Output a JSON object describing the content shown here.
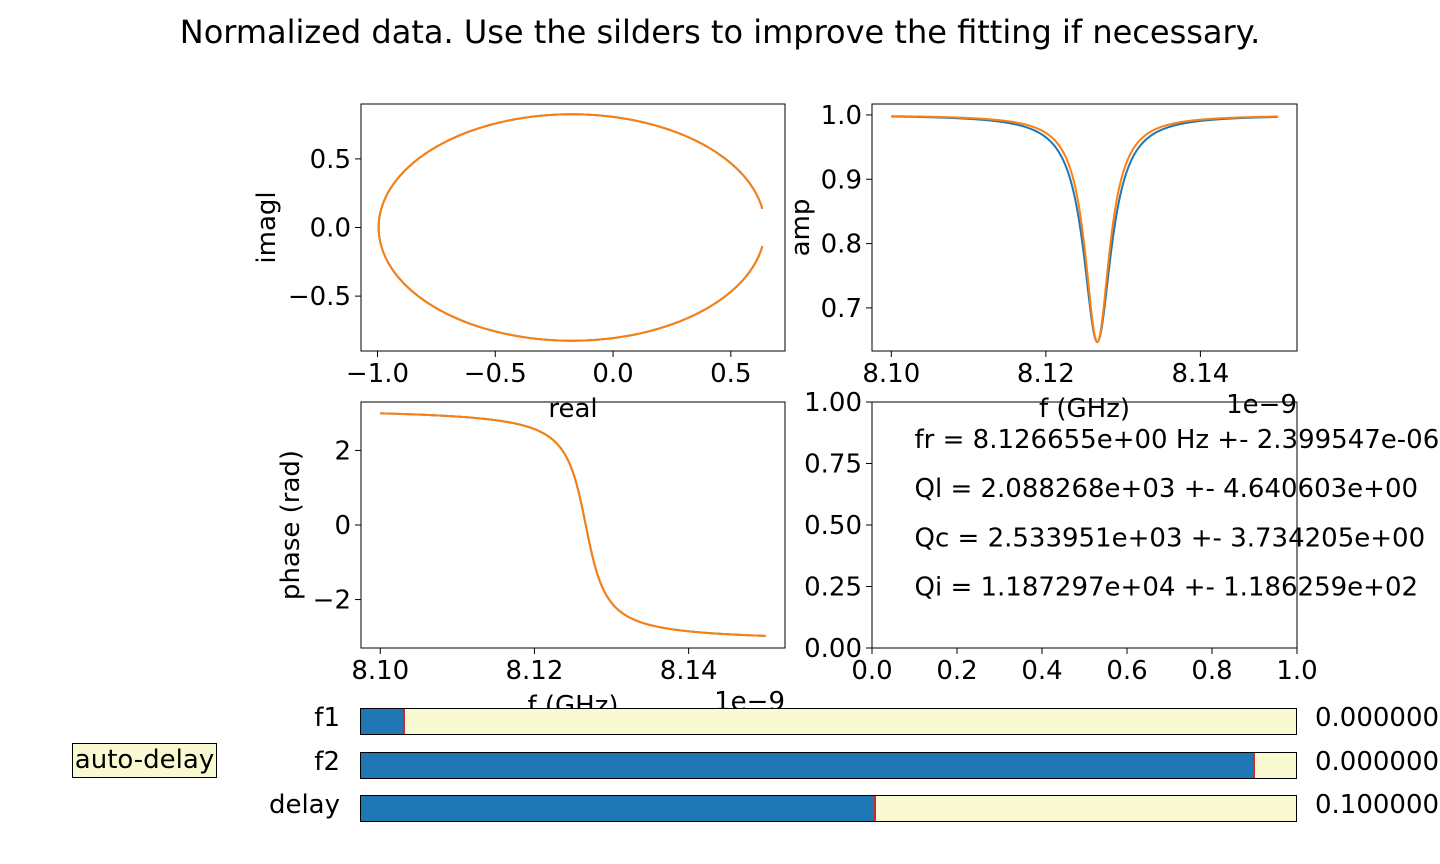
{
  "title": "Normalized data. Use the silders to improve the fitting if necessary.",
  "colors": {
    "data": "#1f77b4",
    "fit": "#ff7f0e",
    "handle": "#d62728",
    "widget_bg": "#fafad2"
  },
  "chart_data": [
    {
      "id": "iq",
      "type": "line",
      "xlabel": "real",
      "ylabel": "imagl",
      "xlim": [
        -1.07,
        0.73
      ],
      "ylim": [
        -0.9,
        0.9
      ],
      "xticks": [
        -1.0,
        -0.5,
        0.0,
        0.5
      ],
      "xtick_labels": [
        "−1.0",
        "−0.5",
        "0.0",
        "0.5"
      ],
      "yticks": [
        -0.5,
        0.0,
        0.5
      ],
      "ytick_labels": [
        "−0.5",
        "0.0",
        "0.5"
      ],
      "circle": {
        "center": [
          -0.175,
          0.0
        ],
        "radius_x": 0.82,
        "radius_y": 0.825,
        "gap_half_angle_deg": 9.5
      },
      "series": [
        {
          "role": "data"
        },
        {
          "role": "fit"
        }
      ]
    },
    {
      "id": "amp",
      "type": "line",
      "xlabel": "f (GHz)",
      "ylabel": "amp",
      "offset_text": "1e−9",
      "xlim": [
        8.0975,
        8.1525
      ],
      "ylim": [
        0.633,
        1.017
      ],
      "xticks": [
        8.1,
        8.12,
        8.14
      ],
      "xtick_labels": [
        "8.10",
        "8.12",
        "8.14"
      ],
      "yticks": [
        0.7,
        0.8,
        0.9,
        1.0
      ],
      "ytick_labels": [
        "0.7",
        "0.8",
        "0.9",
        "1.0"
      ],
      "x_range": [
        8.1,
        8.15
      ],
      "resonance": {
        "f0": 8.126655,
        "min_amp": 0.647,
        "fwhm_fit": 0.0039,
        "fwhm_data": 0.0044,
        "asymmetry": 0.0008
      },
      "series": [
        {
          "role": "data"
        },
        {
          "role": "fit"
        }
      ]
    },
    {
      "id": "phase",
      "type": "line",
      "xlabel": "f (GHz)",
      "ylabel": "phase (rad)",
      "offset_text": "1e−9",
      "xlim": [
        8.0975,
        8.1525
      ],
      "ylim": [
        -3.3,
        3.3
      ],
      "xticks": [
        8.1,
        8.12,
        8.14
      ],
      "xtick_labels": [
        "8.10",
        "8.12",
        "8.14"
      ],
      "yticks": [
        2,
        0,
        -2
      ],
      "ytick_labels": [
        "2",
        "0",
        "−2"
      ],
      "x_range": [
        8.1,
        8.15
      ],
      "resonance": {
        "f0": 8.126655,
        "Ql": 2088.268
      },
      "series": [
        {
          "role": "data"
        },
        {
          "role": "fit"
        }
      ]
    },
    {
      "id": "results",
      "type": "table",
      "xlim": [
        0,
        1
      ],
      "ylim": [
        0,
        1
      ],
      "xticks": [
        0,
        0.2,
        0.4,
        0.6,
        0.8,
        1.0
      ],
      "xtick_labels": [
        "0.0",
        "0.2",
        "0.4",
        "0.6",
        "0.8",
        "1.0"
      ],
      "yticks": [
        0,
        0.25,
        0.5,
        0.75,
        1.0
      ],
      "ytick_labels": [
        "0.00",
        "0.25",
        "0.50",
        "0.75",
        "1.00"
      ],
      "texts": [
        {
          "x": 0.1,
          "y": 0.85,
          "text": "fr = 8.126655e+00 Hz +- 2.399547e-06"
        },
        {
          "x": 0.1,
          "y": 0.65,
          "text": "Ql = 2.088268e+03 +- 4.640603e+00"
        },
        {
          "x": 0.1,
          "y": 0.45,
          "text": "Qc = 2.533951e+03 +- 3.734205e+00"
        },
        {
          "x": 0.1,
          "y": 0.25,
          "text": "Qi = 1.187297e+04 +- 1.186259e+02"
        }
      ]
    }
  ],
  "sliders": [
    {
      "label": "f1",
      "fraction": 0.046,
      "value": "0.000000"
    },
    {
      "label": "f2",
      "fraction": 0.955,
      "value": "0.000000"
    },
    {
      "label": "delay",
      "fraction": 0.55,
      "value": "0.100000"
    }
  ],
  "button": {
    "label": "auto-delay"
  }
}
